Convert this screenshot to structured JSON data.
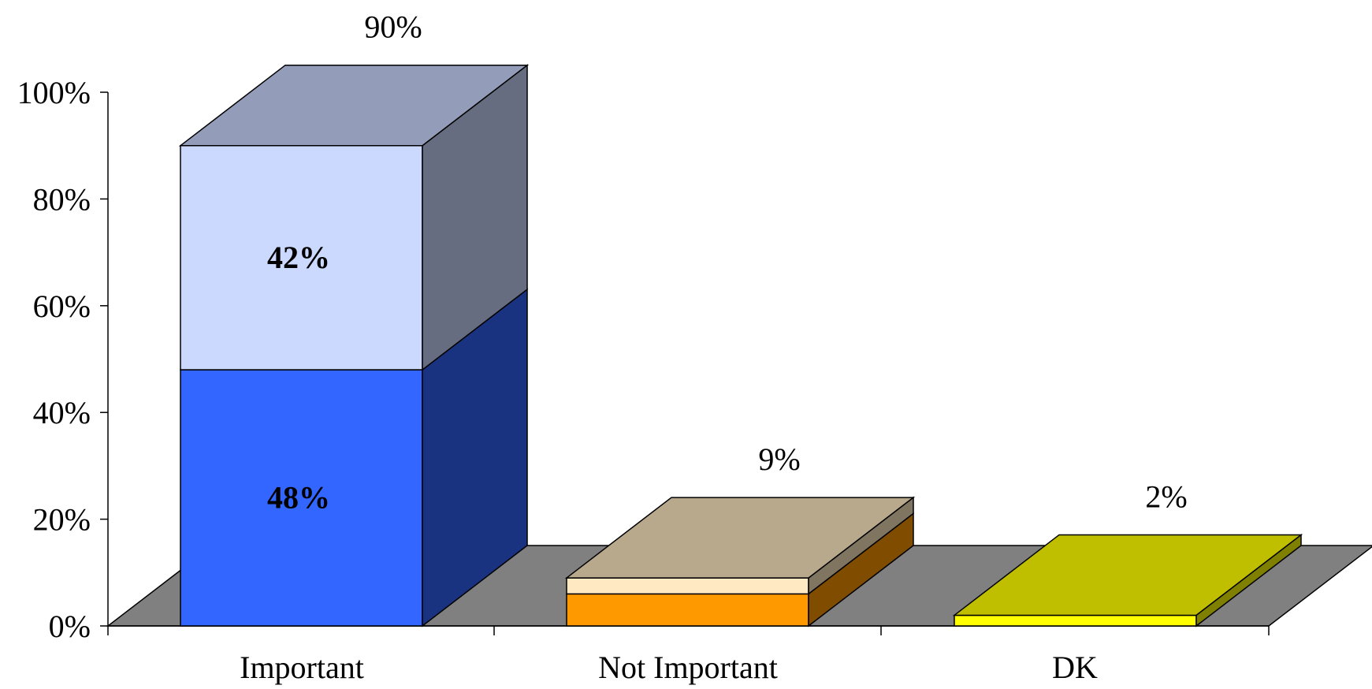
{
  "chart_data": {
    "type": "bar",
    "stacked": true,
    "three_d": true,
    "categories": [
      "Important",
      "Not Important",
      "DK"
    ],
    "series": [
      {
        "values": [
          48,
          6,
          2
        ],
        "colors": [
          "#3366ff",
          "#ff9900",
          "#ffff00"
        ],
        "labels": [
          "48%",
          "",
          ""
        ]
      },
      {
        "values": [
          42,
          3,
          0
        ],
        "colors": [
          "#ccd9ff",
          "#ffe9c2",
          "#ffff00"
        ],
        "labels": [
          "42%",
          "",
          ""
        ]
      }
    ],
    "totals": [
      90,
      9,
      2
    ],
    "total_labels": [
      "90%",
      "9%",
      "2%"
    ],
    "ylim": [
      0,
      100
    ],
    "yticks": [
      0,
      20,
      40,
      60,
      80,
      100
    ],
    "ytick_labels": [
      "0%",
      "20%",
      "40%",
      "60%",
      "80%",
      "100%"
    ],
    "floor_color": "#808080",
    "grid": false,
    "legend": "none",
    "title": "",
    "xlabel": "",
    "ylabel": ""
  }
}
